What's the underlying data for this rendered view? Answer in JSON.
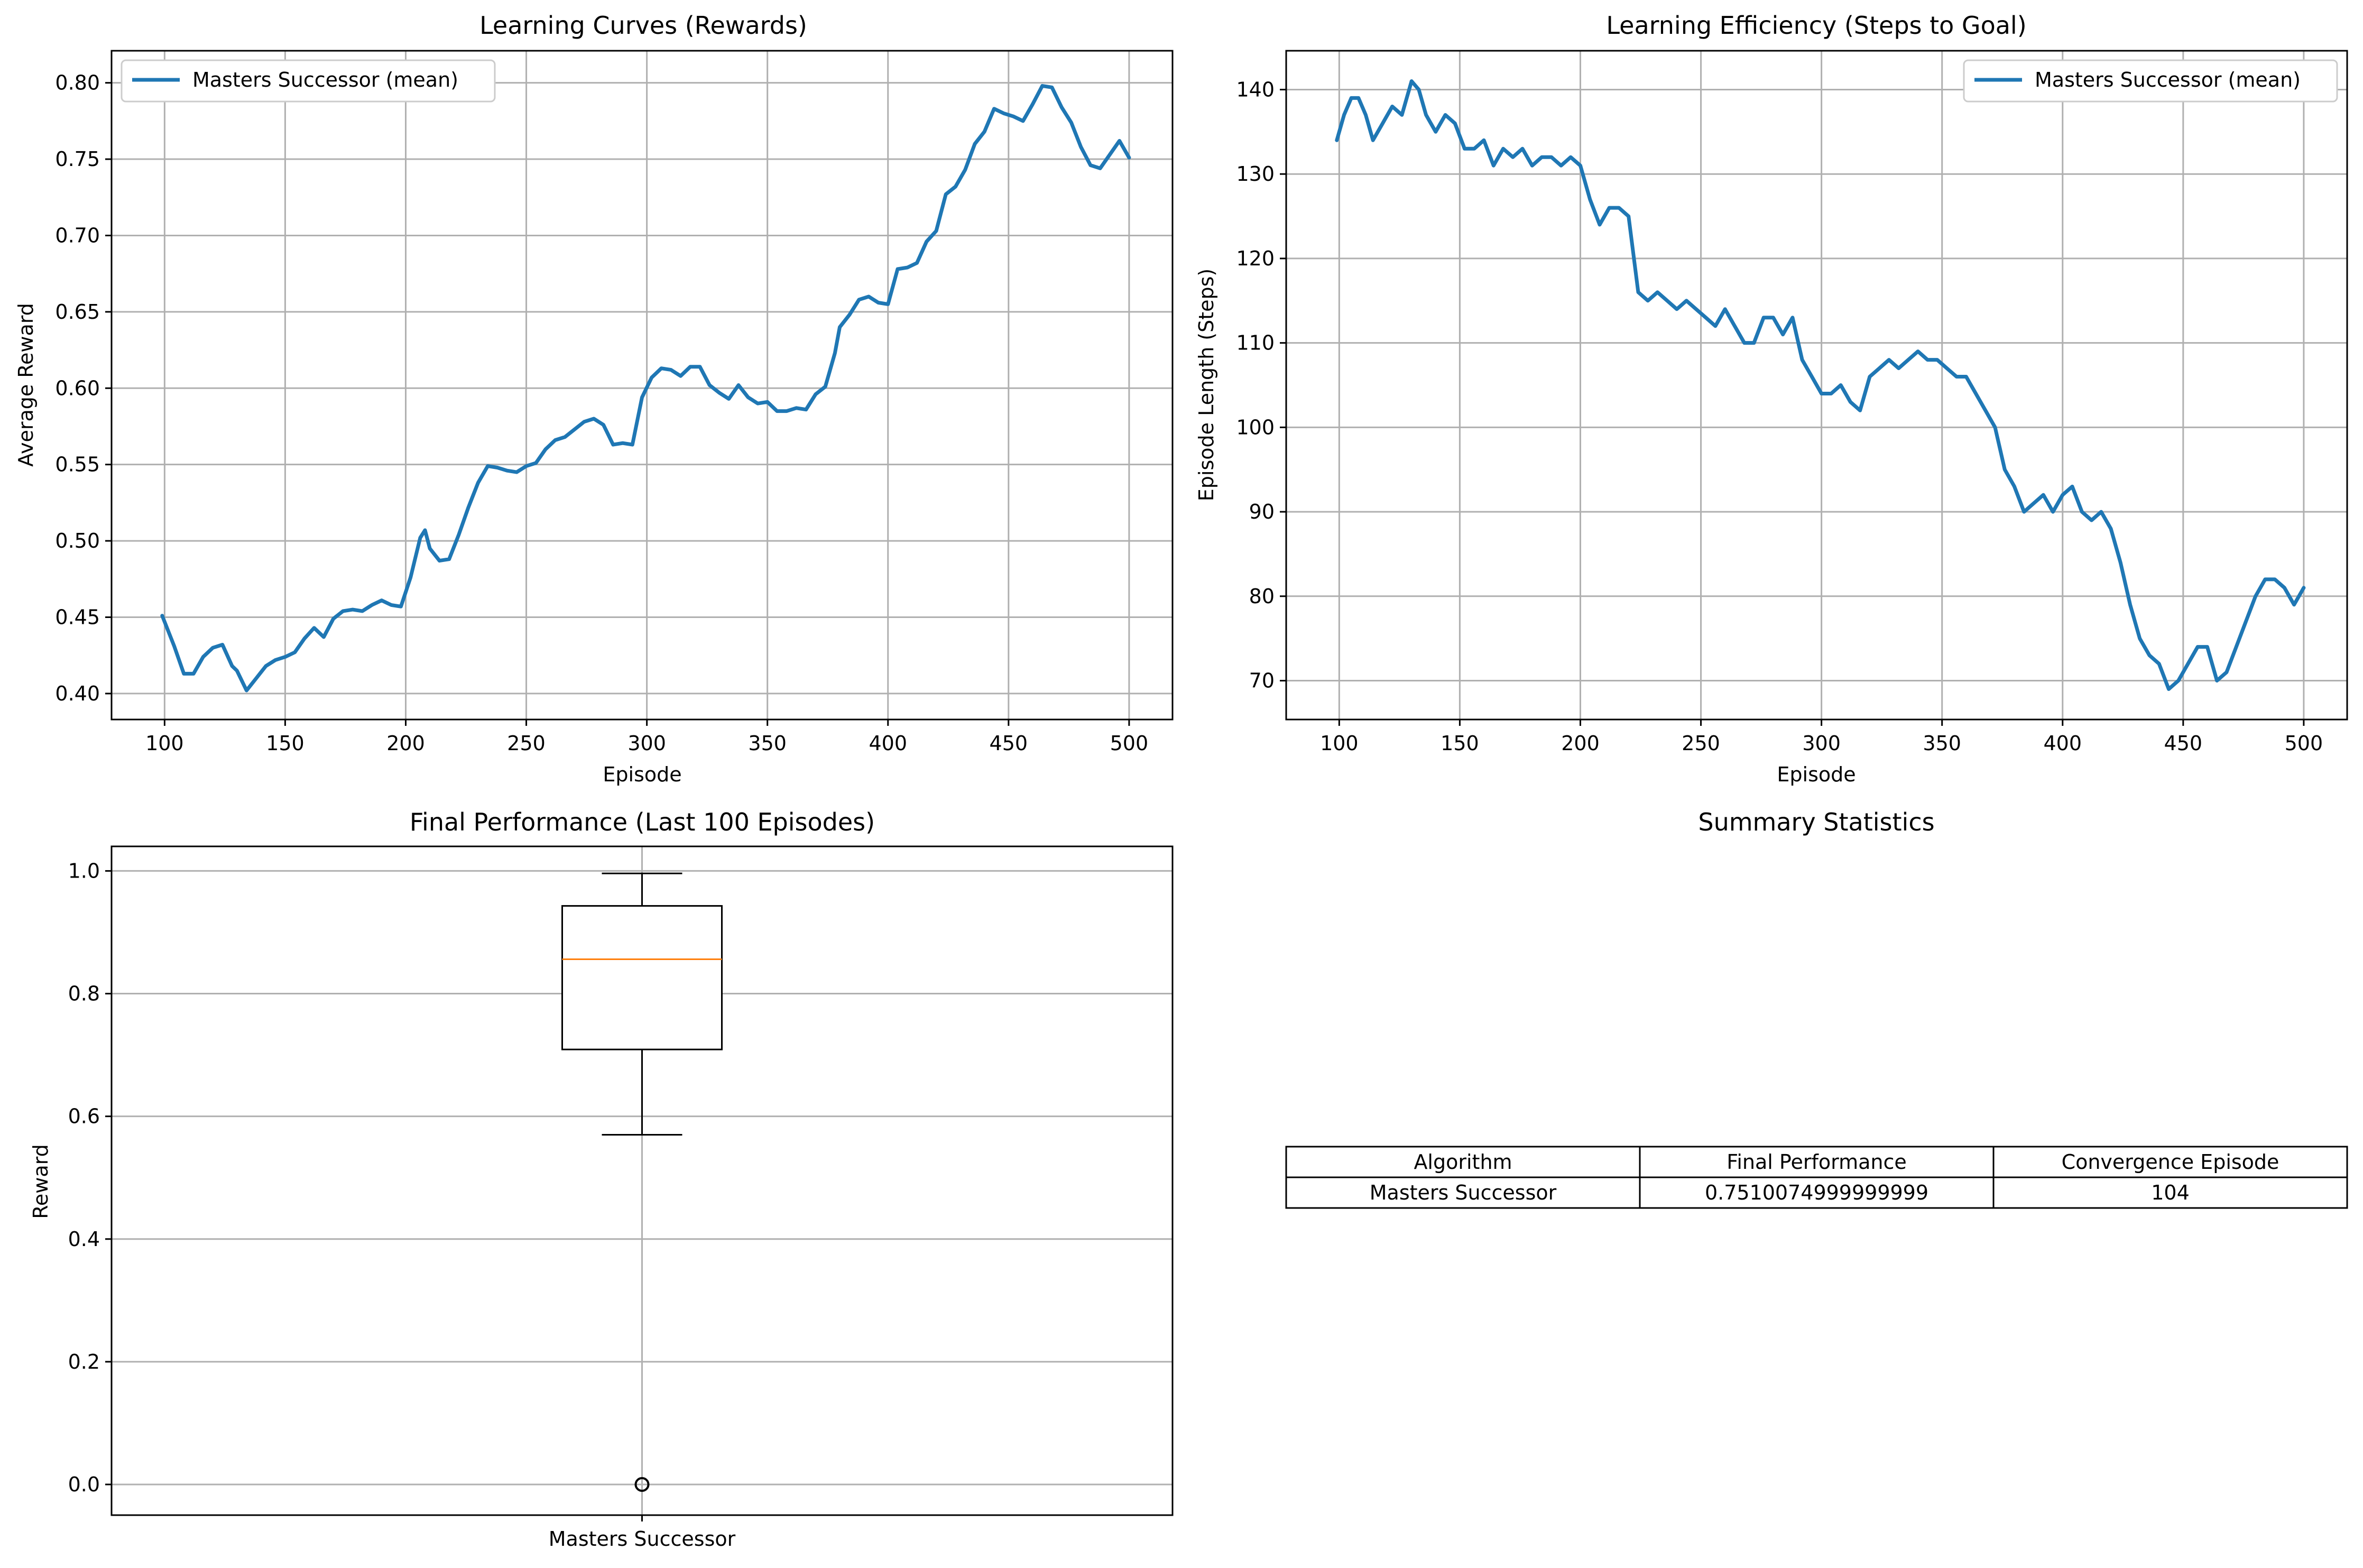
{
  "chart_data": [
    {
      "type": "line",
      "title": "Learning Curves (Rewards)",
      "xlabel": "Episode",
      "ylabel": "Average Reward",
      "xlim": [
        78,
        518
      ],
      "ylim": [
        0.383,
        0.821
      ],
      "xticks": [
        "100",
        "150",
        "200",
        "250",
        "300",
        "350",
        "400",
        "450",
        "500"
      ],
      "yticks": [
        "0.40",
        "0.45",
        "0.50",
        "0.55",
        "0.60",
        "0.65",
        "0.70",
        "0.75",
        "0.80"
      ],
      "grid": true,
      "legend_position": "upper left",
      "colors": {
        "series": "#1f77b4"
      },
      "series": [
        {
          "name": "Masters Successor (mean)",
          "x": [
            99,
            104,
            108,
            112,
            116,
            120,
            124,
            128,
            130,
            134,
            138,
            142,
            146,
            150,
            154,
            158,
            162,
            166,
            170,
            174,
            178,
            182,
            186,
            190,
            194,
            198,
            202,
            206,
            208,
            210,
            214,
            218,
            222,
            226,
            230,
            234,
            238,
            242,
            246,
            250,
            254,
            258,
            262,
            266,
            270,
            274,
            278,
            282,
            286,
            290,
            294,
            298,
            302,
            306,
            310,
            314,
            318,
            322,
            326,
            330,
            334,
            338,
            342,
            346,
            350,
            354,
            358,
            362,
            366,
            370,
            374,
            378,
            380,
            384,
            388,
            392,
            396,
            400,
            404,
            408,
            412,
            416,
            420,
            424,
            428,
            432,
            436,
            440,
            444,
            448,
            452,
            456,
            460,
            464,
            468,
            472,
            476,
            480,
            484,
            488,
            492,
            496,
            500
          ],
          "y": [
            0.451,
            0.431,
            0.413,
            0.413,
            0.424,
            0.43,
            0.432,
            0.418,
            0.415,
            0.402,
            0.41,
            0.418,
            0.422,
            0.424,
            0.427,
            0.436,
            0.443,
            0.437,
            0.449,
            0.454,
            0.455,
            0.454,
            0.458,
            0.461,
            0.458,
            0.457,
            0.476,
            0.502,
            0.507,
            0.495,
            0.487,
            0.488,
            0.504,
            0.522,
            0.538,
            0.549,
            0.548,
            0.546,
            0.545,
            0.549,
            0.551,
            0.56,
            0.566,
            0.568,
            0.573,
            0.578,
            0.58,
            0.576,
            0.563,
            0.564,
            0.563,
            0.594,
            0.607,
            0.613,
            0.612,
            0.608,
            0.614,
            0.614,
            0.602,
            0.597,
            0.593,
            0.602,
            0.594,
            0.59,
            0.591,
            0.585,
            0.585,
            0.587,
            0.586,
            0.596,
            0.601,
            0.623,
            0.64,
            0.648,
            0.658,
            0.66,
            0.656,
            0.655,
            0.678,
            0.679,
            0.682,
            0.696,
            0.703,
            0.727,
            0.732,
            0.743,
            0.76,
            0.768,
            0.783,
            0.78,
            0.778,
            0.775,
            0.786,
            0.798,
            0.797,
            0.784,
            0.774,
            0.758,
            0.746,
            0.744,
            0.753,
            0.762,
            0.751
          ]
        }
      ]
    },
    {
      "type": "line",
      "title": "Learning Efficiency (Steps to Goal)",
      "xlabel": "Episode",
      "ylabel": "Episode Length (Steps)",
      "xlim": [
        78,
        518
      ],
      "ylim": [
        65.4,
        144.6
      ],
      "xticks": [
        "100",
        "150",
        "200",
        "250",
        "300",
        "350",
        "400",
        "450",
        "500"
      ],
      "yticks": [
        "70",
        "80",
        "90",
        "100",
        "110",
        "120",
        "130",
        "140"
      ],
      "grid": true,
      "legend_position": "upper right",
      "colors": {
        "series": "#1f77b4"
      },
      "series": [
        {
          "name": "Masters Successor (mean)",
          "x": [
            99,
            102,
            105,
            108,
            111,
            114,
            118,
            122,
            126,
            130,
            133,
            136,
            140,
            144,
            148,
            152,
            156,
            160,
            164,
            168,
            172,
            176,
            180,
            184,
            188,
            192,
            196,
            200,
            204,
            208,
            212,
            216,
            220,
            224,
            228,
            232,
            236,
            240,
            244,
            248,
            252,
            256,
            260,
            264,
            268,
            272,
            276,
            280,
            284,
            288,
            292,
            296,
            300,
            304,
            308,
            312,
            316,
            320,
            324,
            328,
            332,
            336,
            340,
            344,
            348,
            352,
            356,
            360,
            364,
            368,
            372,
            376,
            380,
            384,
            388,
            392,
            396,
            400,
            404,
            408,
            412,
            416,
            420,
            424,
            428,
            432,
            436,
            440,
            444,
            448,
            452,
            456,
            460,
            464,
            468,
            472,
            476,
            480,
            484,
            488,
            492,
            496,
            500
          ],
          "y": [
            134,
            137,
            139,
            139,
            137,
            134,
            136,
            138,
            137,
            141,
            140,
            137,
            135,
            137,
            136,
            133,
            133,
            134,
            131,
            133,
            132,
            133,
            131,
            132,
            132,
            131,
            132,
            131,
            127,
            124,
            126,
            126,
            125,
            116,
            115,
            116,
            115,
            114,
            115,
            114,
            113,
            112,
            114,
            112,
            110,
            110,
            113,
            113,
            111,
            113,
            108,
            106,
            104,
            104,
            105,
            103,
            102,
            106,
            107,
            108,
            107,
            108,
            109,
            108,
            108,
            107,
            106,
            106,
            104,
            102,
            100,
            95,
            93,
            90,
            91,
            92,
            90,
            92,
            93,
            90,
            89,
            90,
            88,
            84,
            79,
            75,
            73,
            72,
            69,
            70,
            72,
            74,
            74,
            70,
            71,
            74,
            77,
            80,
            82,
            82,
            81,
            79,
            81
          ]
        }
      ]
    },
    {
      "type": "box",
      "title": "Final Performance (Last 100 Episodes)",
      "xlabel": "",
      "ylabel": "Reward",
      "categories": [
        "Masters Successor"
      ],
      "ylim": [
        -0.05,
        1.04
      ],
      "yticks": [
        "0.0",
        "0.2",
        "0.4",
        "0.6",
        "0.8",
        "1.0"
      ],
      "grid": true,
      "colors": {
        "median": "#ff7f0e",
        "box": "#000000"
      },
      "boxes": [
        {
          "whisker_low": 0.57,
          "q1": 0.709,
          "median": 0.856,
          "q3": 0.943,
          "whisker_high": 0.996,
          "outliers": [
            0.0
          ]
        }
      ]
    },
    {
      "type": "table",
      "title": "Summary Statistics",
      "columns": [
        "Algorithm",
        "Final Performance",
        "Convergence Episode"
      ],
      "rows": [
        [
          "Masters Successor",
          "0.7510074999999999",
          "104"
        ]
      ]
    }
  ]
}
